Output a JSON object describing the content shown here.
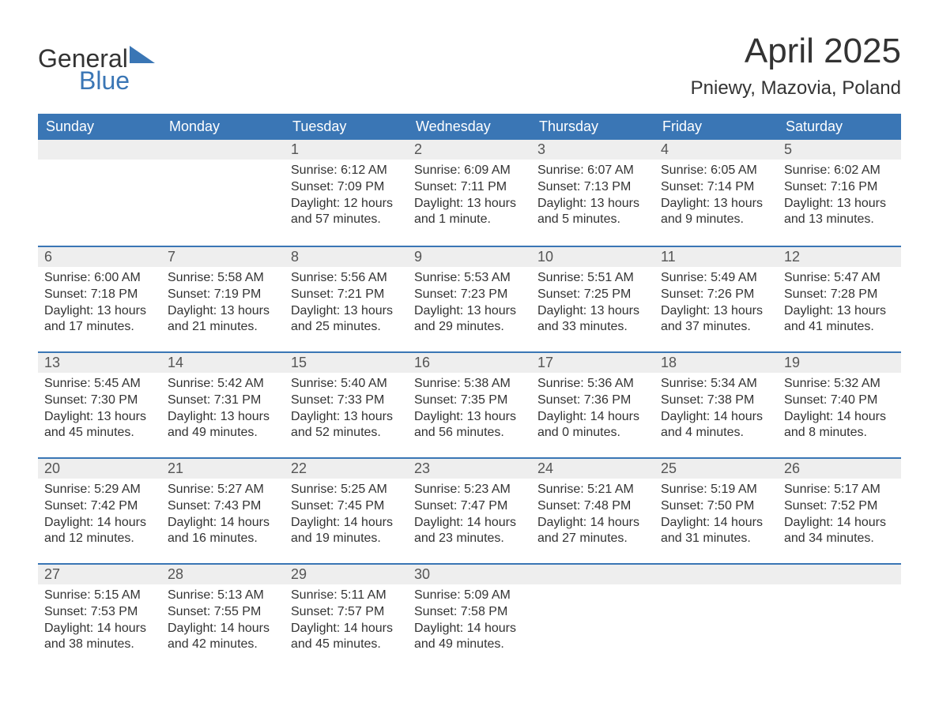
{
  "logo": {
    "word1": "General",
    "word2": "Blue",
    "tri_color": "#3a76b5",
    "text_color": "#333333"
  },
  "title": {
    "month": "April 2025",
    "location": "Pniewy, Mazovia, Poland"
  },
  "colors": {
    "header_bg": "#3a76b5",
    "header_fg": "#ffffff",
    "daynum_bg": "#eeeeee",
    "row_border": "#3a76b5",
    "body_fg": "#333333",
    "page_bg": "#ffffff"
  },
  "font": {
    "family": "Arial",
    "title_size_pt": 33,
    "location_size_pt": 18,
    "header_size_pt": 14,
    "body_size_pt": 12
  },
  "day_headers": [
    "Sunday",
    "Monday",
    "Tuesday",
    "Wednesday",
    "Thursday",
    "Friday",
    "Saturday"
  ],
  "weeks": [
    [
      null,
      null,
      {
        "n": "1",
        "sr": "Sunrise: 6:12 AM",
        "ss": "Sunset: 7:09 PM",
        "d1": "Daylight: 12 hours",
        "d2": "and 57 minutes."
      },
      {
        "n": "2",
        "sr": "Sunrise: 6:09 AM",
        "ss": "Sunset: 7:11 PM",
        "d1": "Daylight: 13 hours",
        "d2": "and 1 minute."
      },
      {
        "n": "3",
        "sr": "Sunrise: 6:07 AM",
        "ss": "Sunset: 7:13 PM",
        "d1": "Daylight: 13 hours",
        "d2": "and 5 minutes."
      },
      {
        "n": "4",
        "sr": "Sunrise: 6:05 AM",
        "ss": "Sunset: 7:14 PM",
        "d1": "Daylight: 13 hours",
        "d2": "and 9 minutes."
      },
      {
        "n": "5",
        "sr": "Sunrise: 6:02 AM",
        "ss": "Sunset: 7:16 PM",
        "d1": "Daylight: 13 hours",
        "d2": "and 13 minutes."
      }
    ],
    [
      {
        "n": "6",
        "sr": "Sunrise: 6:00 AM",
        "ss": "Sunset: 7:18 PM",
        "d1": "Daylight: 13 hours",
        "d2": "and 17 minutes."
      },
      {
        "n": "7",
        "sr": "Sunrise: 5:58 AM",
        "ss": "Sunset: 7:19 PM",
        "d1": "Daylight: 13 hours",
        "d2": "and 21 minutes."
      },
      {
        "n": "8",
        "sr": "Sunrise: 5:56 AM",
        "ss": "Sunset: 7:21 PM",
        "d1": "Daylight: 13 hours",
        "d2": "and 25 minutes."
      },
      {
        "n": "9",
        "sr": "Sunrise: 5:53 AM",
        "ss": "Sunset: 7:23 PM",
        "d1": "Daylight: 13 hours",
        "d2": "and 29 minutes."
      },
      {
        "n": "10",
        "sr": "Sunrise: 5:51 AM",
        "ss": "Sunset: 7:25 PM",
        "d1": "Daylight: 13 hours",
        "d2": "and 33 minutes."
      },
      {
        "n": "11",
        "sr": "Sunrise: 5:49 AM",
        "ss": "Sunset: 7:26 PM",
        "d1": "Daylight: 13 hours",
        "d2": "and 37 minutes."
      },
      {
        "n": "12",
        "sr": "Sunrise: 5:47 AM",
        "ss": "Sunset: 7:28 PM",
        "d1": "Daylight: 13 hours",
        "d2": "and 41 minutes."
      }
    ],
    [
      {
        "n": "13",
        "sr": "Sunrise: 5:45 AM",
        "ss": "Sunset: 7:30 PM",
        "d1": "Daylight: 13 hours",
        "d2": "and 45 minutes."
      },
      {
        "n": "14",
        "sr": "Sunrise: 5:42 AM",
        "ss": "Sunset: 7:31 PM",
        "d1": "Daylight: 13 hours",
        "d2": "and 49 minutes."
      },
      {
        "n": "15",
        "sr": "Sunrise: 5:40 AM",
        "ss": "Sunset: 7:33 PM",
        "d1": "Daylight: 13 hours",
        "d2": "and 52 minutes."
      },
      {
        "n": "16",
        "sr": "Sunrise: 5:38 AM",
        "ss": "Sunset: 7:35 PM",
        "d1": "Daylight: 13 hours",
        "d2": "and 56 minutes."
      },
      {
        "n": "17",
        "sr": "Sunrise: 5:36 AM",
        "ss": "Sunset: 7:36 PM",
        "d1": "Daylight: 14 hours",
        "d2": "and 0 minutes."
      },
      {
        "n": "18",
        "sr": "Sunrise: 5:34 AM",
        "ss": "Sunset: 7:38 PM",
        "d1": "Daylight: 14 hours",
        "d2": "and 4 minutes."
      },
      {
        "n": "19",
        "sr": "Sunrise: 5:32 AM",
        "ss": "Sunset: 7:40 PM",
        "d1": "Daylight: 14 hours",
        "d2": "and 8 minutes."
      }
    ],
    [
      {
        "n": "20",
        "sr": "Sunrise: 5:29 AM",
        "ss": "Sunset: 7:42 PM",
        "d1": "Daylight: 14 hours",
        "d2": "and 12 minutes."
      },
      {
        "n": "21",
        "sr": "Sunrise: 5:27 AM",
        "ss": "Sunset: 7:43 PM",
        "d1": "Daylight: 14 hours",
        "d2": "and 16 minutes."
      },
      {
        "n": "22",
        "sr": "Sunrise: 5:25 AM",
        "ss": "Sunset: 7:45 PM",
        "d1": "Daylight: 14 hours",
        "d2": "and 19 minutes."
      },
      {
        "n": "23",
        "sr": "Sunrise: 5:23 AM",
        "ss": "Sunset: 7:47 PM",
        "d1": "Daylight: 14 hours",
        "d2": "and 23 minutes."
      },
      {
        "n": "24",
        "sr": "Sunrise: 5:21 AM",
        "ss": "Sunset: 7:48 PM",
        "d1": "Daylight: 14 hours",
        "d2": "and 27 minutes."
      },
      {
        "n": "25",
        "sr": "Sunrise: 5:19 AM",
        "ss": "Sunset: 7:50 PM",
        "d1": "Daylight: 14 hours",
        "d2": "and 31 minutes."
      },
      {
        "n": "26",
        "sr": "Sunrise: 5:17 AM",
        "ss": "Sunset: 7:52 PM",
        "d1": "Daylight: 14 hours",
        "d2": "and 34 minutes."
      }
    ],
    [
      {
        "n": "27",
        "sr": "Sunrise: 5:15 AM",
        "ss": "Sunset: 7:53 PM",
        "d1": "Daylight: 14 hours",
        "d2": "and 38 minutes."
      },
      {
        "n": "28",
        "sr": "Sunrise: 5:13 AM",
        "ss": "Sunset: 7:55 PM",
        "d1": "Daylight: 14 hours",
        "d2": "and 42 minutes."
      },
      {
        "n": "29",
        "sr": "Sunrise: 5:11 AM",
        "ss": "Sunset: 7:57 PM",
        "d1": "Daylight: 14 hours",
        "d2": "and 45 minutes."
      },
      {
        "n": "30",
        "sr": "Sunrise: 5:09 AM",
        "ss": "Sunset: 7:58 PM",
        "d1": "Daylight: 14 hours",
        "d2": "and 49 minutes."
      },
      null,
      null,
      null
    ]
  ]
}
